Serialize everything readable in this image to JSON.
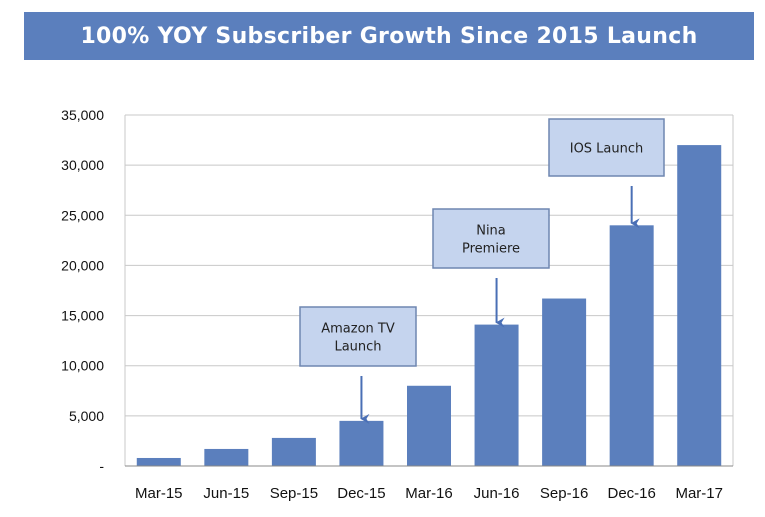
{
  "banner": {
    "title": "100% YOY Subscriber Growth Since 2015 Launch"
  },
  "colors": {
    "banner": "#5b7fbd",
    "bar": "#5b7fbd",
    "callout_fill": "#c5d4ee",
    "callout_border": "#6f86b0",
    "arrow": "#4a6fb5",
    "grid": "#c8c8c8"
  },
  "chart_data": {
    "type": "bar",
    "title": "100% YOY Subscriber Growth Since 2015 Launch",
    "xlabel": "",
    "ylabel": "",
    "categories": [
      "Mar-15",
      "Jun-15",
      "Sep-15",
      "Dec-15",
      "Mar-16",
      "Jun-16",
      "Sep-16",
      "Dec-16",
      "Mar-17"
    ],
    "values": [
      800,
      1700,
      2800,
      4500,
      8000,
      14100,
      16700,
      24000,
      32000
    ],
    "ylim": [
      0,
      35000
    ],
    "yticks": [
      0,
      5000,
      10000,
      15000,
      20000,
      25000,
      30000,
      35000
    ],
    "ytick_labels": [
      "-",
      "5,000",
      "10,000",
      "15,000",
      "20,000",
      "25,000",
      "30,000",
      "35,000"
    ],
    "grid": true,
    "legend": "none",
    "annotations": [
      {
        "category": "Dec-15",
        "lines": [
          "Amazon TV",
          "Launch"
        ]
      },
      {
        "category": "Jun-16",
        "lines": [
          "Nina",
          "Premiere"
        ]
      },
      {
        "category": "Dec-16",
        "lines": [
          "IOS Launch"
        ]
      }
    ]
  }
}
